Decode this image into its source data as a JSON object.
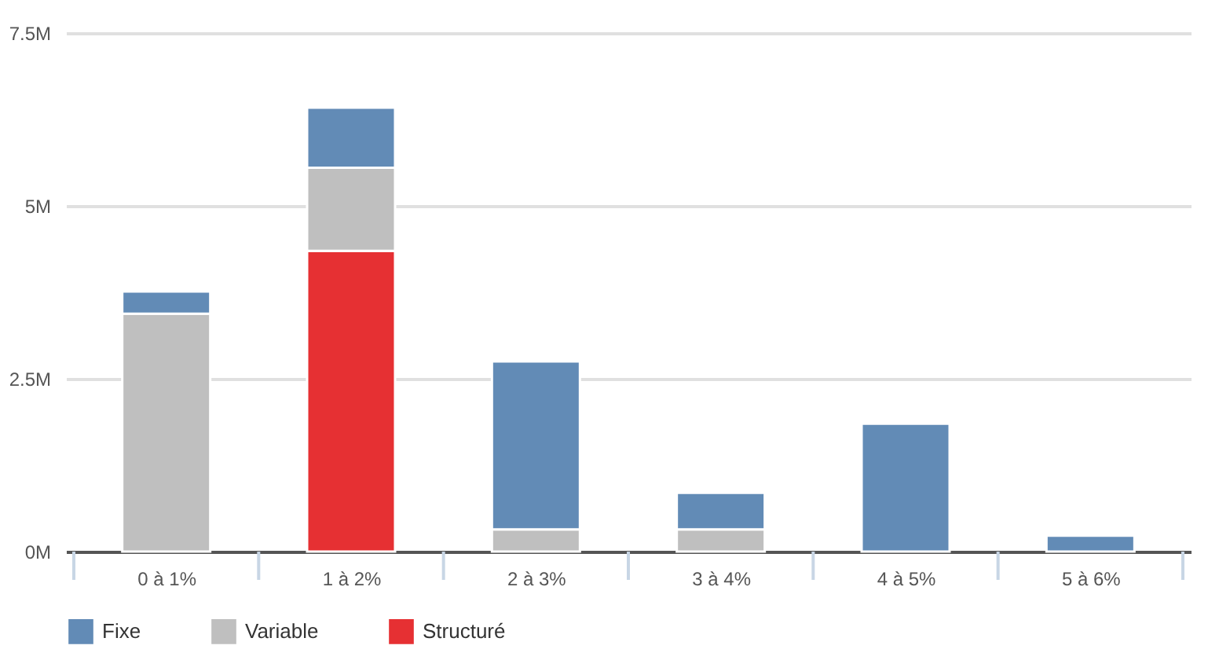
{
  "chart_data": {
    "type": "bar",
    "stacked": true,
    "categories": [
      "0 à 1%",
      "1 à 2%",
      "2 à 3%",
      "3 à 4%",
      "4 à 5%",
      "5 à 6%"
    ],
    "series": [
      {
        "name": "Structuré",
        "color": "#e63033",
        "values": [
          null,
          4.35,
          null,
          null,
          null,
          null
        ]
      },
      {
        "name": "Variable",
        "color": "#bfbfbf",
        "values": [
          3.44,
          1.2,
          0.32,
          0.32,
          null,
          null
        ]
      },
      {
        "name": "Fixe",
        "color": "#628bb6",
        "values": [
          0.32,
          0.87,
          2.43,
          0.53,
          1.85,
          0.23
        ]
      }
    ],
    "ylim": [
      0,
      7.5
    ],
    "yticks": [
      {
        "value": 0,
        "label": "0M"
      },
      {
        "value": 2.5,
        "label": "2.5M"
      },
      {
        "value": 5,
        "label": "5M"
      },
      {
        "value": 7.5,
        "label": "7.5M"
      }
    ],
    "grid": "y",
    "legend": "bottom"
  }
}
